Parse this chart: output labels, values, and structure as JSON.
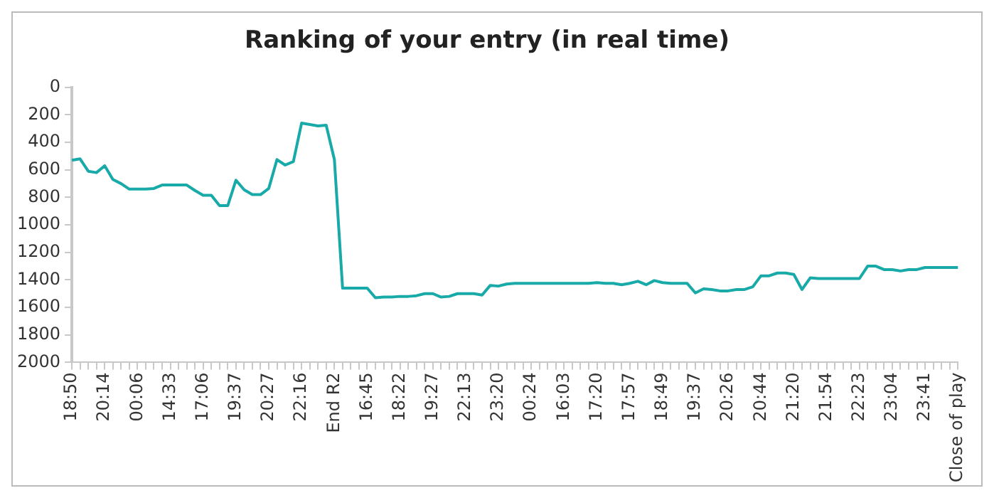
{
  "chart_data": {
    "type": "line",
    "title": "Ranking of your entry (in real time)",
    "categories": [
      "18:50",
      null,
      null,
      null,
      "20:14",
      null,
      null,
      null,
      "00:06",
      null,
      null,
      null,
      "14:33",
      null,
      null,
      null,
      "17:06",
      null,
      null,
      null,
      "19:37",
      null,
      null,
      null,
      "20:27",
      null,
      null,
      null,
      "22:16",
      null,
      null,
      null,
      "End R2",
      null,
      null,
      null,
      "16:45",
      null,
      null,
      null,
      "18:22",
      null,
      null,
      null,
      "19:27",
      null,
      null,
      null,
      "22:13",
      null,
      null,
      null,
      "23:20",
      null,
      null,
      null,
      "00:24",
      null,
      null,
      null,
      "16:03",
      null,
      null,
      null,
      "17:20",
      null,
      null,
      null,
      "17:57",
      null,
      null,
      null,
      "18:49",
      null,
      null,
      null,
      "19:37",
      null,
      null,
      null,
      "20:26",
      null,
      null,
      null,
      "20:44",
      null,
      null,
      null,
      "21:20",
      null,
      null,
      null,
      "21:54",
      null,
      null,
      null,
      "22:23",
      null,
      null,
      null,
      "23:04",
      null,
      null,
      null,
      "23:41",
      null,
      null,
      null,
      "Close of play"
    ],
    "series": [
      {
        "color": "#17aaa8",
        "values": [
          530,
          520,
          610,
          620,
          570,
          670,
          700,
          740,
          740,
          740,
          735,
          710,
          710,
          710,
          710,
          750,
          785,
          785,
          860,
          860,
          675,
          745,
          780,
          780,
          735,
          525,
          565,
          540,
          260,
          270,
          280,
          275,
          525,
          1460,
          1460,
          1460,
          1460,
          1530,
          1525,
          1525,
          1520,
          1520,
          1515,
          1500,
          1500,
          1525,
          1520,
          1500,
          1500,
          1500,
          1510,
          1440,
          1445,
          1430,
          1425,
          1425,
          1425,
          1425,
          1425,
          1425,
          1425,
          1425,
          1425,
          1425,
          1420,
          1425,
          1425,
          1435,
          1425,
          1410,
          1435,
          1405,
          1420,
          1425,
          1425,
          1425,
          1495,
          1465,
          1470,
          1480,
          1480,
          1470,
          1470,
          1450,
          1370,
          1370,
          1350,
          1350,
          1360,
          1470,
          1385,
          1390,
          1390,
          1390,
          1390,
          1390,
          1390,
          1300,
          1300,
          1325,
          1325,
          1335,
          1325,
          1325,
          1310,
          1310,
          1310,
          1310,
          1310
        ]
      }
    ],
    "ylim": [
      2000,
      0
    ],
    "yticks": [
      0,
      200,
      400,
      600,
      800,
      1000,
      1200,
      1400,
      1600,
      1800,
      2000
    ],
    "grid": false,
    "legend": false,
    "marker": "none",
    "line_style": "solid"
  }
}
